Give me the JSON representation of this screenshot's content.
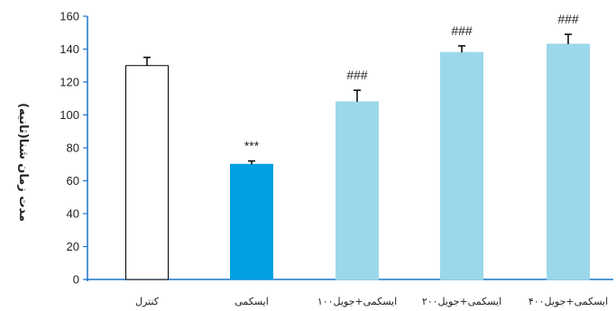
{
  "chart_data": {
    "type": "bar",
    "title": "",
    "xlabel": "",
    "ylabel": "مدت زمان شنا(ثانیه)",
    "ylim": [
      0,
      160
    ],
    "yticks": [
      0,
      20,
      40,
      60,
      80,
      100,
      120,
      140,
      160
    ],
    "grid": false,
    "categories": [
      "کنترل",
      "ایسکمی",
      "ایسکمی+جویل۱۰۰",
      "ایسکمی+جویل۲۰۰",
      "ایسکمی+جویل۴۰۰"
    ],
    "values": [
      130,
      70,
      108,
      138,
      143
    ],
    "errors": [
      5,
      2,
      7,
      4,
      6
    ],
    "annotations": [
      "",
      "***",
      "###",
      "###",
      "###"
    ],
    "colors": {
      "bar_fills": [
        "#ffffff",
        "#00a0e3",
        "#9bd8ea",
        "#9bd8ea",
        "#9bd8ea"
      ],
      "bar_edges": [
        "#000000",
        "#00a0e3",
        "#9bd8ea",
        "#9bd8ea",
        "#9bd8ea"
      ],
      "axis": "#1a75c9"
    }
  }
}
